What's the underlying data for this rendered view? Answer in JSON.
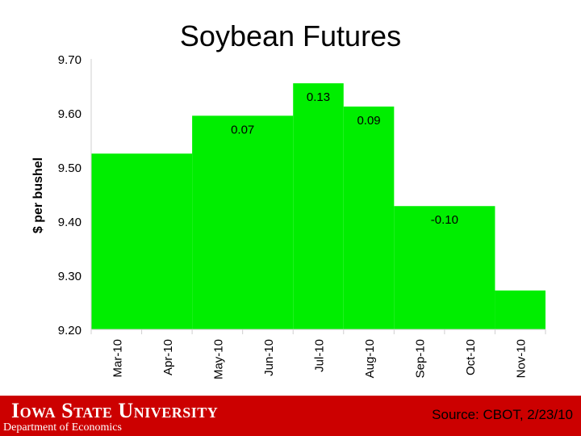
{
  "chart_data": {
    "type": "bar",
    "title": "Soybean Futures",
    "ylabel": "$ per bushel",
    "xlabel": "",
    "categories": [
      "Mar-10",
      "Apr-10",
      "May-10",
      "Jun-10",
      "Jul-10",
      "Aug-10",
      "Sep-10",
      "Oct-10",
      "Nov-10"
    ],
    "steps": [
      {
        "from": "Mar-10",
        "value": 9.525
      },
      {
        "from": "May-10",
        "value": 9.595,
        "label": "0.07"
      },
      {
        "from": "Jul-10",
        "value": 9.655,
        "label": "0.13"
      },
      {
        "from": "Aug-10",
        "value": 9.612,
        "label": "0.09"
      },
      {
        "from": "Sep-10",
        "value": 9.428,
        "label": "-0.10"
      },
      {
        "from": "Nov-10",
        "value": 9.272
      }
    ],
    "ylim": [
      9.2,
      9.7
    ],
    "yticks": [
      "9.20",
      "9.30",
      "9.40",
      "9.50",
      "9.60",
      "9.70"
    ],
    "grid": false,
    "bar_color": "#00ee00"
  },
  "footer": {
    "university": "Iowa State University",
    "department": "Department of Economics",
    "source": "Source: CBOT, 2/23/10",
    "color": "#cc0000"
  }
}
